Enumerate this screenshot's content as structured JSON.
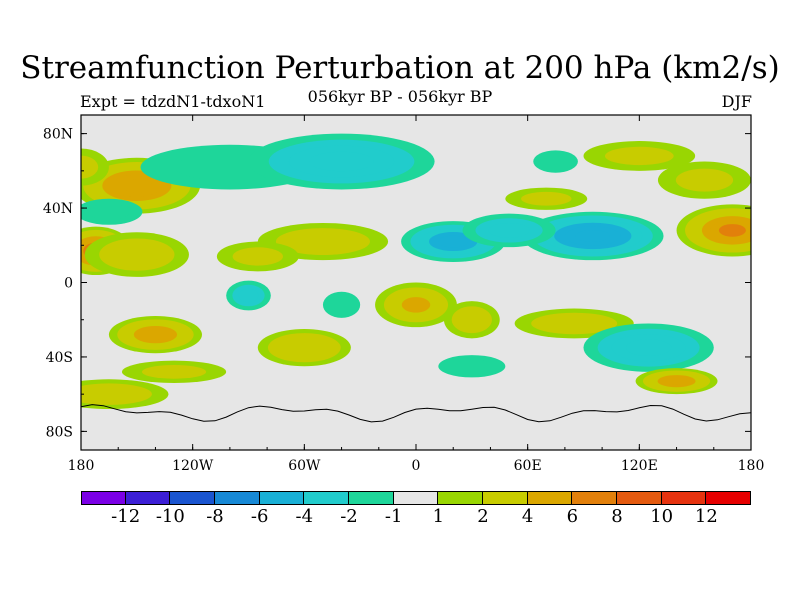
{
  "title": "Streamfunction Perturbation at 200 hPa (km2/s)",
  "experiment_label": "Expt = tdzdN1-tdxoN1",
  "period_label": "056kyr BP - 056kyr BP",
  "season_label": "DJF",
  "chart_data": {
    "type": "heatmap",
    "projection": "cylindrical-equidistant",
    "lon_range": [
      -180,
      180
    ],
    "lat_range": [
      -90,
      90
    ],
    "x_ticks": [
      {
        "value": -180,
        "label": "180"
      },
      {
        "value": -120,
        "label": "120W"
      },
      {
        "value": -60,
        "label": "60W"
      },
      {
        "value": 0,
        "label": "0"
      },
      {
        "value": 60,
        "label": "60E"
      },
      {
        "value": 120,
        "label": "120E"
      },
      {
        "value": 180,
        "label": "180"
      }
    ],
    "y_ticks": [
      {
        "value": 80,
        "label": "80N"
      },
      {
        "value": 40,
        "label": "40N"
      },
      {
        "value": 0,
        "label": "0"
      },
      {
        "value": -40,
        "label": "40S"
      },
      {
        "value": -80,
        "label": "80S"
      }
    ],
    "colorbar": {
      "bounds": [
        -14,
        -12,
        -10,
        -8,
        -6,
        -4,
        -2,
        -1,
        1,
        2,
        4,
        6,
        8,
        10,
        12,
        14
      ],
      "labels": [
        "-12",
        "-10",
        "-8",
        "-6",
        "-4",
        "-2",
        "-1",
        "1",
        "2",
        "4",
        "6",
        "8",
        "10",
        "12"
      ],
      "colors": [
        "#7b00e6",
        "#3c1fd6",
        "#1a55d0",
        "#1789d6",
        "#19b0d6",
        "#21cccc",
        "#1ed69a",
        "#e6e6e6",
        "#99d602",
        "#c8cc00",
        "#dba700",
        "#e2800b",
        "#e45a0f",
        "#e6330f",
        "#e60000"
      ]
    },
    "anomalies": [
      {
        "lon": -150,
        "lat": 52,
        "value": 5.5,
        "rlon": 34,
        "rlat": 15
      },
      {
        "lon": -172,
        "lat": 17,
        "value": 6.5,
        "rlon": 20,
        "rlat": 13
      },
      {
        "lon": -150,
        "lat": 15,
        "value": 3.0,
        "rlon": 28,
        "rlat": 12
      },
      {
        "lon": -180,
        "lat": 62,
        "value": 2.0,
        "rlon": 15,
        "rlat": 10
      },
      {
        "lon": -100,
        "lat": 62,
        "value": -2.0,
        "rlon": 48,
        "rlat": 12
      },
      {
        "lon": -40,
        "lat": 65,
        "value": -3.5,
        "rlon": 50,
        "rlat": 15
      },
      {
        "lon": -165,
        "lat": 38,
        "value": -2.0,
        "rlon": 18,
        "rlat": 7
      },
      {
        "lon": -50,
        "lat": 22,
        "value": 2.8,
        "rlon": 35,
        "rlat": 10
      },
      {
        "lon": -85,
        "lat": 14,
        "value": 2.0,
        "rlon": 22,
        "rlat": 8
      },
      {
        "lon": 20,
        "lat": 22,
        "value": -5.0,
        "rlon": 28,
        "rlat": 11
      },
      {
        "lon": 95,
        "lat": 25,
        "value": -5.5,
        "rlon": 38,
        "rlat": 13
      },
      {
        "lon": 50,
        "lat": 28,
        "value": -3.0,
        "rlon": 25,
        "rlat": 9
      },
      {
        "lon": 70,
        "lat": 45,
        "value": 2.0,
        "rlon": 22,
        "rlat": 6
      },
      {
        "lon": 170,
        "lat": 28,
        "value": 6.0,
        "rlon": 30,
        "rlat": 14
      },
      {
        "lon": 155,
        "lat": 55,
        "value": 2.0,
        "rlon": 25,
        "rlat": 10
      },
      {
        "lon": 120,
        "lat": 68,
        "value": 2.0,
        "rlon": 30,
        "rlat": 8
      },
      {
        "lon": 75,
        "lat": 65,
        "value": -2.0,
        "rlon": 12,
        "rlat": 6
      },
      {
        "lon": -140,
        "lat": -28,
        "value": 4.5,
        "rlon": 25,
        "rlat": 10
      },
      {
        "lon": -90,
        "lat": -7,
        "value": -2.5,
        "rlon": 12,
        "rlat": 8
      },
      {
        "lon": -40,
        "lat": -12,
        "value": -2.0,
        "rlon": 10,
        "rlat": 7
      },
      {
        "lon": -60,
        "lat": -35,
        "value": 3.5,
        "rlon": 25,
        "rlat": 10
      },
      {
        "lon": 0,
        "lat": -12,
        "value": 4.0,
        "rlon": 22,
        "rlat": 12
      },
      {
        "lon": 30,
        "lat": -20,
        "value": 3.0,
        "rlon": 15,
        "rlat": 10
      },
      {
        "lon": 85,
        "lat": -22,
        "value": 2.5,
        "rlon": 32,
        "rlat": 8
      },
      {
        "lon": 125,
        "lat": -35,
        "value": -4.0,
        "rlon": 35,
        "rlat": 13
      },
      {
        "lon": 140,
        "lat": -53,
        "value": 4.5,
        "rlon": 22,
        "rlat": 7
      },
      {
        "lon": 30,
        "lat": -45,
        "value": -2.0,
        "rlon": 18,
        "rlat": 6
      },
      {
        "lon": -165,
        "lat": -60,
        "value": 2.5,
        "rlon": 32,
        "rlat": 8
      },
      {
        "lon": -130,
        "lat": -48,
        "value": 2.0,
        "rlon": 28,
        "rlat": 6
      }
    ]
  }
}
